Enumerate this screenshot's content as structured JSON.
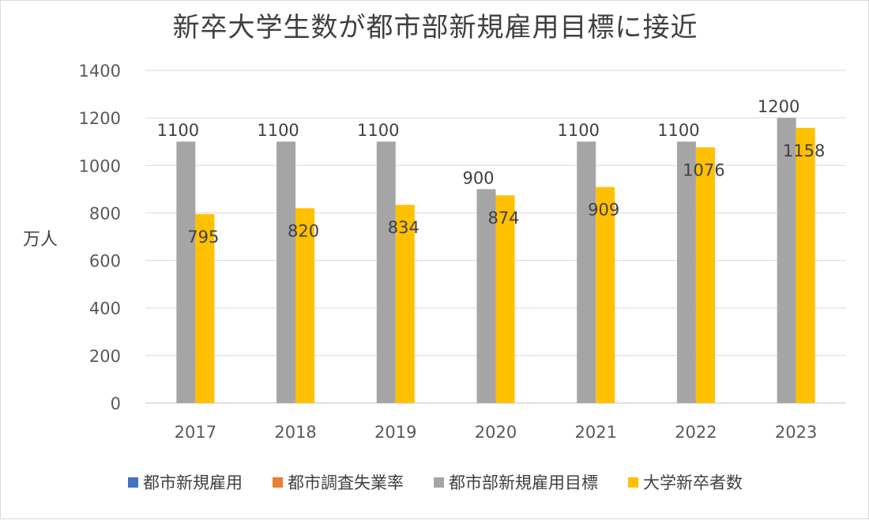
{
  "chart_data": {
    "type": "bar",
    "title": "新卒大学生数が都市部新規雇用目標に接近",
    "ylabel": "万人",
    "xlabel": "",
    "categories": [
      "2017",
      "2018",
      "2019",
      "2020",
      "2021",
      "2022",
      "2023"
    ],
    "ylim": [
      0,
      1400
    ],
    "yticks": [
      0,
      200,
      400,
      600,
      800,
      1000,
      1200,
      1400
    ],
    "grid": true,
    "legend_position": "bottom",
    "series": [
      {
        "name": "都市新規雇用",
        "color": "#4472c4",
        "values": [
          null,
          null,
          null,
          null,
          null,
          null,
          null
        ]
      },
      {
        "name": "都市調査失業率",
        "color": "#ed7d31",
        "values": [
          null,
          null,
          null,
          null,
          null,
          null,
          null
        ]
      },
      {
        "name": "都市部新規雇用目標",
        "color": "#a5a5a5",
        "values": [
          1100,
          1100,
          1100,
          900,
          1100,
          1100,
          1200
        ]
      },
      {
        "name": "大学新卒者数",
        "color": "#ffc000",
        "values": [
          795,
          820,
          834,
          874,
          909,
          1076,
          1158
        ]
      }
    ]
  }
}
